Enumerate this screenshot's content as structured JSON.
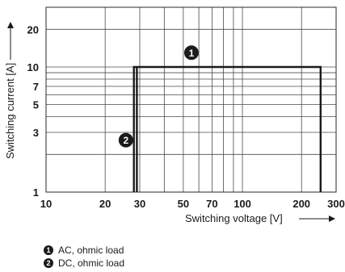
{
  "chart_data": {
    "type": "line",
    "xlabel": "Switching voltage [V]",
    "ylabel": "Switching current [A]",
    "x_scale": "log",
    "y_scale": "log",
    "xlim": [
      10,
      300
    ],
    "ylim": [
      1,
      30
    ],
    "x_ticks": [
      10,
      20,
      30,
      50,
      70,
      100,
      200,
      300
    ],
    "x_tick_labels": [
      "10",
      "20",
      "30",
      "50",
      "70",
      "100",
      "200",
      "300"
    ],
    "x_grid": [
      10,
      20,
      30,
      40,
      50,
      60,
      70,
      80,
      90,
      100,
      200,
      300
    ],
    "y_ticks": [
      1,
      3,
      5,
      7,
      10,
      20
    ],
    "y_tick_labels": [
      "1",
      "3",
      "5",
      "7",
      "10",
      "20"
    ],
    "y_grid": [
      1,
      2,
      3,
      4,
      5,
      6,
      7,
      8,
      9,
      10,
      20,
      30
    ],
    "grid": true,
    "series": [
      {
        "marker": "1",
        "x": [
          28,
          28,
          250,
          250
        ],
        "y": [
          1,
          10,
          10,
          1
        ]
      },
      {
        "marker": "2",
        "x": [
          29,
          29
        ],
        "y": [
          1,
          10
        ]
      }
    ],
    "legend": [
      {
        "marker": "1",
        "label": "AC, ohmic load"
      },
      {
        "marker": "2",
        "label": "DC, ohmic load"
      }
    ]
  }
}
